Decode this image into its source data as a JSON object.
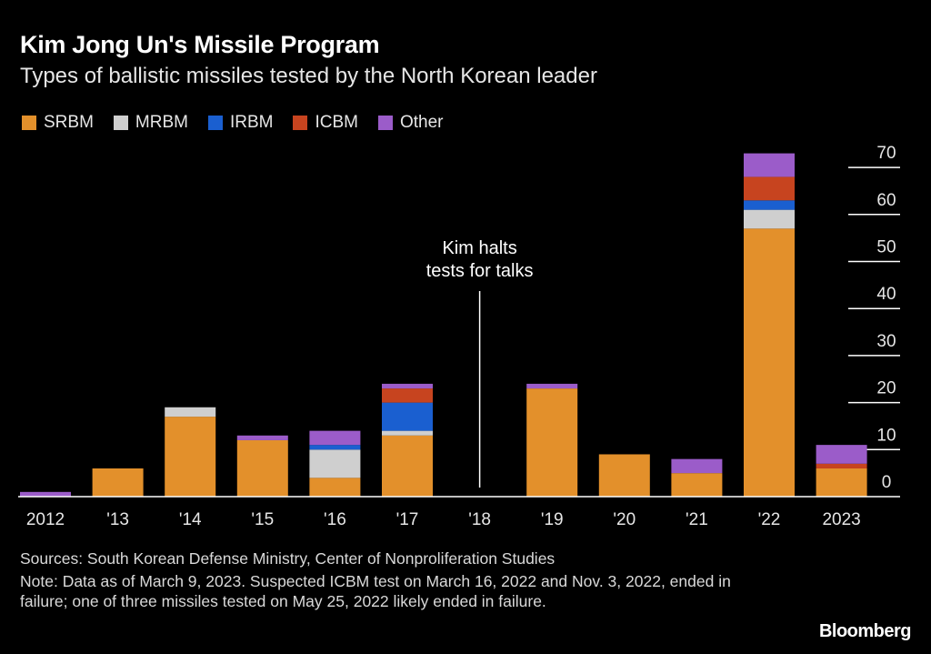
{
  "title": "Kim Jong Un's Missile Program",
  "subtitle": "Types of ballistic missiles tested by the North Korean leader",
  "sources": "Sources: South Korean Defense Ministry, Center of Nonproliferation Studies",
  "note": "Note: Data as of March 9, 2023. Suspected ICBM test on March 16, 2022 and Nov. 3, 2022, ended in failure; one of three missiles tested on May 25, 2022 likely ended in failure.",
  "brand": "Bloomberg",
  "chart_data": {
    "type": "bar",
    "stacked": true,
    "categories": [
      "2012",
      "'13",
      "'14",
      "'15",
      "'16",
      "'17",
      "'18",
      "'19",
      "'20",
      "'21",
      "'22",
      "2023"
    ],
    "series": [
      {
        "name": "SRBM",
        "color": "#E3902B",
        "values": [
          0,
          6,
          17,
          12,
          4,
          13,
          0,
          23,
          9,
          5,
          57,
          6
        ]
      },
      {
        "name": "MRBM",
        "color": "#CFCFCF",
        "values": [
          0,
          0,
          2,
          0,
          6,
          1,
          0,
          0,
          0,
          0,
          4,
          0
        ]
      },
      {
        "name": "IRBM",
        "color": "#1A5FD0",
        "values": [
          0,
          0,
          0,
          0,
          1,
          6,
          0,
          0,
          0,
          0,
          2,
          0
        ]
      },
      {
        "name": "ICBM",
        "color": "#C7441F",
        "values": [
          0,
          0,
          0,
          0,
          0,
          3,
          0,
          0,
          0,
          0,
          5,
          1
        ]
      },
      {
        "name": "Other",
        "color": "#9B5CC9",
        "values": [
          1,
          0,
          0,
          1,
          3,
          1,
          0,
          1,
          0,
          3,
          5,
          4
        ]
      }
    ],
    "yticks": [
      0,
      10,
      20,
      30,
      40,
      50,
      60,
      70
    ],
    "ylim": [
      0,
      70
    ],
    "annotation": {
      "text_line1": "Kim halts",
      "text_line2": "tests for talks",
      "category": "'18"
    },
    "legend_position": "top-left",
    "grid": false
  }
}
